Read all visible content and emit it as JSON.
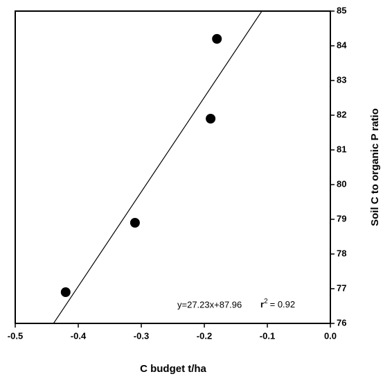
{
  "chart_data": {
    "type": "scatter",
    "x_label": "C budget t/ha",
    "y_label": "Soil C to organic P ratio",
    "x": [
      -0.42,
      -0.31,
      -0.19,
      -0.18
    ],
    "values": [
      76.9,
      78.9,
      81.9,
      84.2
    ],
    "color": "#000000",
    "xlim": [
      -0.5,
      0
    ],
    "xticks": [
      -0.5,
      -0.4,
      -0.3,
      -0.2,
      -0.1,
      {
        "value": 0,
        "label": "0.0"
      }
    ],
    "ylim": [
      76,
      85
    ],
    "yticks": [
      76,
      77,
      78,
      79,
      80,
      81,
      82,
      83,
      84,
      85
    ],
    "y_axis_side": "right",
    "trendline": {
      "slope": 27.23,
      "intercept": 87.96
    },
    "equation": "y=27.23x+87.96",
    "r2": {
      "symbol": "r",
      "exponent": "2",
      "text": "= 0.92"
    }
  }
}
